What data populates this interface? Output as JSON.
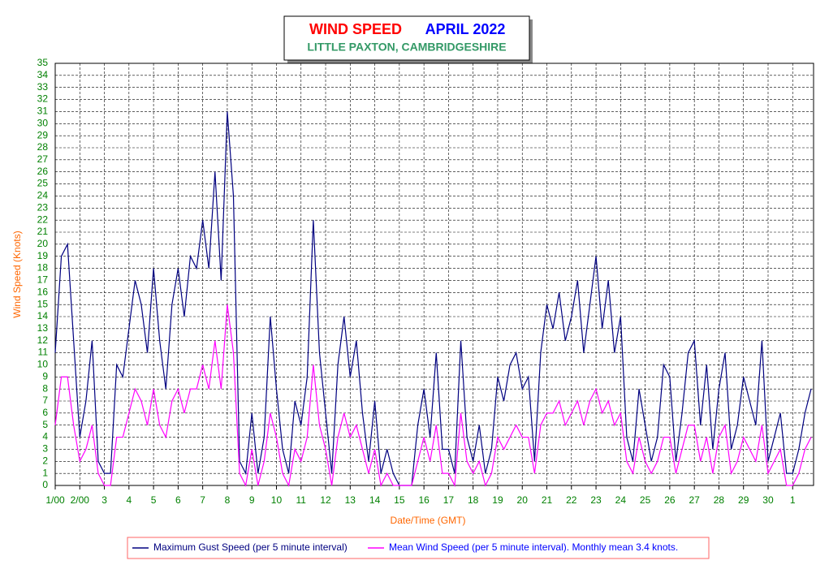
{
  "chart_data": {
    "type": "line",
    "title": "WIND SPEED",
    "title2": "APRIL 2022",
    "subtitle": "LITTLE PAXTON, CAMBRIDGESHIRE",
    "ylabel": "Wind Speed (Knots)",
    "xlabel": "Date/Time (GMT)",
    "x": [
      0,
      0.25,
      0.5,
      0.75,
      1,
      1.25,
      1.5,
      1.75,
      2,
      2.25,
      2.5,
      2.75,
      3,
      3.25,
      3.5,
      3.75,
      4,
      4.25,
      4.5,
      4.75,
      5,
      5.25,
      5.5,
      5.75,
      6,
      6.25,
      6.5,
      6.75,
      7,
      7.25,
      7.5,
      7.75,
      8,
      8.25,
      8.5,
      8.75,
      9,
      9.25,
      9.5,
      9.75,
      10,
      10.25,
      10.5,
      10.75,
      11,
      11.25,
      11.5,
      11.75,
      12,
      12.25,
      12.5,
      12.75,
      13,
      13.25,
      13.5,
      13.75,
      14,
      14.25,
      14.5,
      14.75,
      15,
      15.25,
      15.5,
      15.75,
      16,
      16.25,
      16.5,
      16.75,
      17,
      17.25,
      17.5,
      17.75,
      18,
      18.25,
      18.5,
      18.75,
      19,
      19.25,
      19.5,
      19.75,
      20,
      20.25,
      20.5,
      20.75,
      21,
      21.25,
      21.5,
      21.75,
      22,
      22.25,
      22.5,
      22.75,
      23,
      23.25,
      23.5,
      23.75,
      24,
      24.25,
      24.5,
      24.75,
      25,
      25.25,
      25.5,
      25.75,
      26,
      26.25,
      26.5,
      26.75,
      27,
      27.25,
      27.5,
      27.75,
      28,
      28.25,
      28.5,
      28.75,
      29,
      29.25,
      29.5,
      29.75,
      30,
      30.25,
      30.5,
      30.75
    ],
    "series": [
      {
        "name": "Maximum Gust Speed (per 5 minute interval)",
        "color": "#000080",
        "values": [
          11,
          19,
          20,
          12,
          4,
          7,
          12,
          2,
          1,
          1,
          10,
          9,
          13,
          17,
          15,
          11,
          18,
          12,
          8,
          15,
          18,
          14,
          19,
          18,
          22,
          18,
          26,
          17,
          31,
          24,
          2,
          1,
          6,
          1,
          4,
          14,
          8,
          3,
          1,
          7,
          5,
          9,
          22,
          11,
          6,
          1,
          10,
          14,
          9,
          12,
          6,
          2,
          7,
          1,
          3,
          1,
          0,
          0,
          0,
          5,
          8,
          4,
          11,
          3,
          3,
          1,
          12,
          4,
          2,
          5,
          1,
          3,
          9,
          7,
          10,
          11,
          8,
          9,
          2,
          11,
          15,
          13,
          16,
          12,
          14,
          17,
          11,
          15,
          19,
          13,
          17,
          11,
          14,
          4,
          2,
          8,
          5,
          2,
          4,
          10,
          9,
          2,
          6,
          11,
          12,
          5,
          10,
          3,
          8,
          11,
          3,
          5,
          9,
          7,
          5,
          12,
          2,
          4,
          6,
          1,
          1,
          3,
          6,
          8
        ]
      },
      {
        "name": "Mean Wind Speed (per 5 minute interval). Monthly mean 3.4 knots.",
        "color": "#ff00ff",
        "values": [
          5,
          9,
          9,
          5,
          2,
          3,
          5,
          1,
          0,
          0,
          4,
          4,
          6,
          8,
          7,
          5,
          8,
          5,
          4,
          7,
          8,
          6,
          8,
          8,
          10,
          8,
          12,
          8,
          15,
          11,
          1,
          0,
          3,
          0,
          2,
          6,
          4,
          1,
          0,
          3,
          2,
          4,
          10,
          5,
          3,
          0,
          4,
          6,
          4,
          5,
          3,
          1,
          3,
          0,
          1,
          0,
          0,
          0,
          0,
          2,
          4,
          2,
          5,
          1,
          1,
          0,
          6,
          2,
          1,
          2,
          0,
          1,
          4,
          3,
          4,
          5,
          4,
          4,
          1,
          5,
          6,
          6,
          7,
          5,
          6,
          7,
          5,
          7,
          8,
          6,
          7,
          5,
          6,
          2,
          1,
          4,
          2,
          1,
          2,
          4,
          4,
          1,
          3,
          5,
          5,
          2,
          4,
          1,
          4,
          5,
          1,
          2,
          4,
          3,
          2,
          5,
          1,
          2,
          3,
          0,
          0,
          1,
          3,
          4
        ]
      }
    ],
    "xlim": [
      0,
      30.85
    ],
    "ylim": [
      0,
      35
    ],
    "xticks": [
      {
        "value": 0,
        "label": "1/00"
      },
      {
        "value": 1,
        "label": "2/00"
      },
      {
        "value": 2,
        "label": "3"
      },
      {
        "value": 3,
        "label": "4"
      },
      {
        "value": 4,
        "label": "5"
      },
      {
        "value": 5,
        "label": "6"
      },
      {
        "value": 6,
        "label": "7"
      },
      {
        "value": 7,
        "label": "8"
      },
      {
        "value": 8,
        "label": "9"
      },
      {
        "value": 9,
        "label": "10"
      },
      {
        "value": 10,
        "label": "11"
      },
      {
        "value": 11,
        "label": "12"
      },
      {
        "value": 12,
        "label": "13"
      },
      {
        "value": 13,
        "label": "14"
      },
      {
        "value": 14,
        "label": "15"
      },
      {
        "value": 15,
        "label": "16"
      },
      {
        "value": 16,
        "label": "17"
      },
      {
        "value": 17,
        "label": "18"
      },
      {
        "value": 18,
        "label": "19"
      },
      {
        "value": 19,
        "label": "20"
      },
      {
        "value": 20,
        "label": "21"
      },
      {
        "value": 21,
        "label": "22"
      },
      {
        "value": 22,
        "label": "23"
      },
      {
        "value": 23,
        "label": "24"
      },
      {
        "value": 24,
        "label": "25"
      },
      {
        "value": 25,
        "label": "26"
      },
      {
        "value": 26,
        "label": "27"
      },
      {
        "value": 27,
        "label": "28"
      },
      {
        "value": 28,
        "label": "29"
      },
      {
        "value": 29,
        "label": "30"
      },
      {
        "value": 30,
        "label": "1"
      }
    ],
    "yticks": [
      0,
      1,
      2,
      3,
      4,
      5,
      6,
      7,
      8,
      9,
      10,
      11,
      12,
      13,
      14,
      15,
      16,
      17,
      18,
      19,
      20,
      21,
      22,
      23,
      24,
      25,
      26,
      27,
      28,
      29,
      30,
      31,
      32,
      33,
      34,
      35
    ],
    "grid": true
  }
}
